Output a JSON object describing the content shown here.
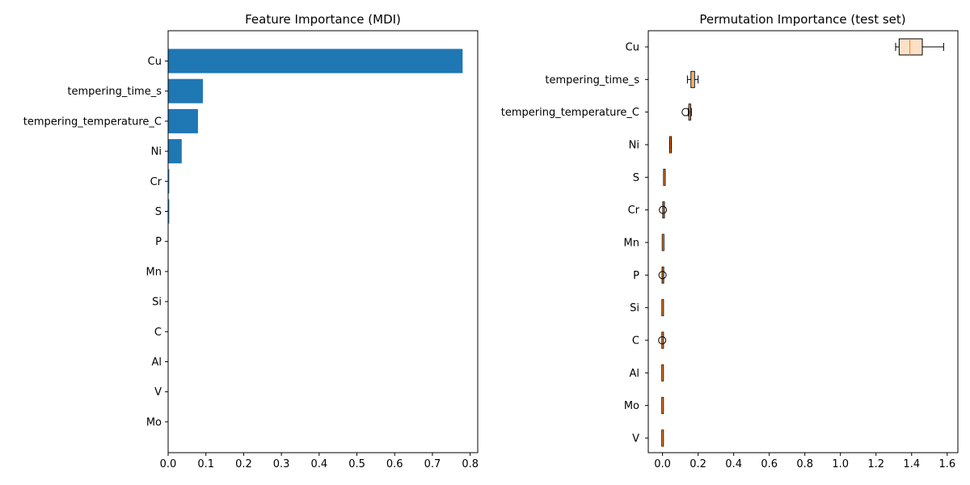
{
  "chart_data": [
    {
      "type": "bar",
      "orientation": "horizontal",
      "title": "Feature Importance (MDI)",
      "xlabel": "",
      "ylabel": "",
      "categories": [
        "Cu",
        "tempering_time_s",
        "tempering_temperature_C",
        "Ni",
        "Cr",
        "S",
        "P",
        "Mn",
        "Si",
        "C",
        "Al",
        "V",
        "Mo"
      ],
      "values": [
        0.78,
        0.092,
        0.079,
        0.036,
        0.003,
        0.003,
        0.0005,
        0.0004,
        0.0003,
        0.0002,
        0.0002,
        0.0001,
        0.0001
      ],
      "xlim": [
        0,
        0.82
      ],
      "xticks": [
        "0.0",
        "0.1",
        "0.2",
        "0.3",
        "0.4",
        "0.5",
        "0.6",
        "0.7",
        "0.8"
      ],
      "bar_color": "#1f77b4",
      "grid": false
    },
    {
      "type": "box",
      "orientation": "horizontal",
      "title": "Permutation Importance (test set)",
      "xlabel": "",
      "ylabel": "",
      "categories": [
        "Cu",
        "tempering_time_s",
        "tempering_temperature_C",
        "Ni",
        "S",
        "Cr",
        "Mn",
        "P",
        "Si",
        "C",
        "Al",
        "Mo",
        "V"
      ],
      "boxes": [
        {
          "whisker_low": 1.31,
          "q1": 1.33,
          "median": 1.39,
          "q3": 1.46,
          "whisker_high": 1.58,
          "outliers": []
        },
        {
          "whisker_low": 0.14,
          "q1": 0.16,
          "median": 0.17,
          "q3": 0.18,
          "whisker_high": 0.2,
          "outliers": []
        },
        {
          "whisker_low": 0.145,
          "q1": 0.148,
          "median": 0.152,
          "q3": 0.158,
          "whisker_high": 0.162,
          "outliers": [
            0.13
          ]
        },
        {
          "whisker_low": 0.04,
          "q1": 0.042,
          "median": 0.045,
          "q3": 0.048,
          "whisker_high": 0.05,
          "outliers": []
        },
        {
          "whisker_low": 0.008,
          "q1": 0.009,
          "median": 0.01,
          "q3": 0.012,
          "whisker_high": 0.013,
          "outliers": []
        },
        {
          "whisker_low": 0.004,
          "q1": 0.005,
          "median": 0.006,
          "q3": 0.007,
          "whisker_high": 0.008,
          "outliers": [
            0.002
          ]
        },
        {
          "whisker_low": 0.001,
          "q1": 0.002,
          "median": 0.003,
          "q3": 0.004,
          "whisker_high": 0.005,
          "outliers": []
        },
        {
          "whisker_low": 0.001,
          "q1": 0.0015,
          "median": 0.002,
          "q3": 0.0025,
          "whisker_high": 0.003,
          "outliers": [
            0.0
          ]
        },
        {
          "whisker_low": 0.0,
          "q1": 0.0005,
          "median": 0.001,
          "q3": 0.0015,
          "whisker_high": 0.002,
          "outliers": []
        },
        {
          "whisker_low": 0.0,
          "q1": 0.0005,
          "median": 0.001,
          "q3": 0.0015,
          "whisker_high": 0.002,
          "outliers": [
            -0.002
          ]
        },
        {
          "whisker_low": 0.0,
          "q1": 0.0003,
          "median": 0.0006,
          "q3": 0.0009,
          "whisker_high": 0.0012,
          "outliers": []
        },
        {
          "whisker_low": 0.0,
          "q1": 0.0003,
          "median": 0.0006,
          "q3": 0.0009,
          "whisker_high": 0.0012,
          "outliers": []
        },
        {
          "whisker_low": 0.0,
          "q1": 0.0003,
          "median": 0.0006,
          "q3": 0.0009,
          "whisker_high": 0.0012,
          "outliers": []
        }
      ],
      "xlim": [
        -0.08,
        1.66
      ],
      "xticks": [
        "0.0",
        "0.2",
        "0.4",
        "0.6",
        "0.8",
        "1.0",
        "1.2",
        "1.4",
        "1.6"
      ],
      "box_fill": "#fde0c5",
      "median_color": "#ff7f0e",
      "grid": false
    }
  ]
}
